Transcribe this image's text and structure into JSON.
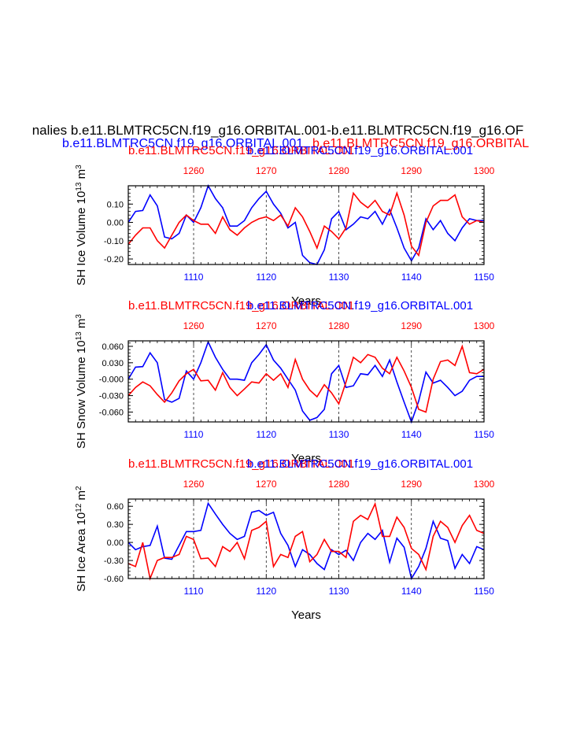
{
  "figure": {
    "title": "nalies b.e11.BLMTRC5CN.f19_g16.ORBITAL.001-b.e11.BLMTRC5CN.f19_g16.OF",
    "legend_blue": "b.e11.BLMTRC5CN.f19_g16.ORBITAL.001",
    "legend_red": "b.e11.BLMTRC5CN.f19_g16.ORBITAL",
    "blue_color": "#0000ff",
    "red_color": "#ff0000"
  },
  "chart_data": [
    {
      "type": "line",
      "top_title_red": "b.e11.BLMTRC5CN.f19_g16.ORBITAL.001",
      "top_title_blue": "b.e11.BLMTRC5CN.f19_g16.ORBITAL.001",
      "ylabel": "SH Ice Volume 10",
      "ylabel_exp": "13",
      "ylabel_unit": " m",
      "ylabel_unit_exp": "3",
      "xlabel": "Years",
      "ylim": [
        -0.23,
        0.2
      ],
      "yticks": [
        -0.2,
        -0.1,
        0.0,
        0.1
      ],
      "ytick_labels": [
        "-0.20",
        "-0.10",
        "0.00",
        "0.10"
      ],
      "xlim_bottom": [
        1101,
        1150
      ],
      "xticks_bottom": [
        1110,
        1120,
        1130,
        1140,
        1150
      ],
      "xlim_top": [
        1251,
        1300
      ],
      "xticks_top": [
        1260,
        1270,
        1280,
        1290,
        1300
      ],
      "series": [
        {
          "axis": "bottom",
          "color": "#0000ff",
          "x": [
            1101,
            1102,
            1103,
            1104,
            1105,
            1106,
            1107,
            1108,
            1109,
            1110,
            1111,
            1112,
            1113,
            1114,
            1115,
            1116,
            1117,
            1118,
            1119,
            1120,
            1121,
            1122,
            1123,
            1124,
            1125,
            1126,
            1127,
            1128,
            1129,
            1130,
            1131,
            1132,
            1133,
            1134,
            1135,
            1136,
            1137,
            1138,
            1139,
            1140,
            1141,
            1142,
            1143,
            1144,
            1145,
            1146,
            1147,
            1148,
            1149,
            1150
          ],
          "values": [
            0.0,
            0.06,
            0.065,
            0.15,
            0.09,
            -0.08,
            -0.09,
            -0.06,
            0.04,
            0.0,
            0.08,
            0.2,
            0.13,
            0.08,
            -0.02,
            -0.02,
            0.01,
            0.08,
            0.13,
            0.17,
            0.1,
            0.05,
            -0.03,
            0.0,
            -0.18,
            -0.22,
            -0.23,
            -0.15,
            0.02,
            0.06,
            -0.04,
            -0.01,
            0.03,
            0.02,
            0.06,
            -0.01,
            0.07,
            -0.03,
            -0.14,
            -0.21,
            -0.14,
            0.02,
            -0.04,
            0.01,
            -0.06,
            -0.1,
            -0.03,
            0.02,
            0.01,
            0.01
          ]
        },
        {
          "axis": "top",
          "color": "#ff0000",
          "x": [
            1251,
            1252,
            1253,
            1254,
            1255,
            1256,
            1257,
            1258,
            1259,
            1260,
            1261,
            1262,
            1263,
            1264,
            1265,
            1266,
            1267,
            1268,
            1269,
            1270,
            1271,
            1272,
            1273,
            1274,
            1275,
            1276,
            1277,
            1278,
            1279,
            1280,
            1281,
            1282,
            1283,
            1284,
            1285,
            1286,
            1287,
            1288,
            1289,
            1290,
            1291,
            1292,
            1293,
            1294,
            1295,
            1296,
            1297,
            1298,
            1299,
            1300
          ],
          "values": [
            -0.12,
            -0.07,
            -0.03,
            -0.03,
            -0.1,
            -0.14,
            -0.07,
            0.0,
            0.04,
            0.01,
            -0.01,
            -0.01,
            -0.06,
            0.03,
            -0.04,
            -0.07,
            -0.03,
            0.0,
            0.02,
            0.03,
            0.01,
            0.04,
            -0.02,
            0.08,
            0.03,
            -0.05,
            -0.14,
            -0.02,
            -0.05,
            -0.09,
            -0.03,
            0.16,
            0.11,
            0.08,
            0.12,
            0.06,
            0.04,
            0.16,
            0.04,
            -0.13,
            -0.18,
            0.0,
            0.09,
            0.12,
            0.12,
            0.15,
            0.03,
            -0.01,
            0.01,
            0.0
          ]
        }
      ]
    },
    {
      "type": "line",
      "top_title_red": "b.e11.BLMTRC5CN.f19_g16.ORBITAL.001",
      "top_title_blue": "b.e11.BLMTRC5CN.f19_g16.ORBITAL.001",
      "ylabel": "SH Snow Volume 10",
      "ylabel_exp": "13",
      "ylabel_unit": " m",
      "ylabel_unit_exp": "3",
      "xlabel": "Years",
      "ylim": [
        -0.078,
        0.07
      ],
      "yticks": [
        -0.06,
        -0.03,
        0.0,
        0.03,
        0.06
      ],
      "ytick_labels": [
        "-0.060",
        "-0.030",
        "-0.000",
        "0.030",
        "0.060"
      ],
      "xlim_bottom": [
        1101,
        1150
      ],
      "xticks_bottom": [
        1110,
        1120,
        1130,
        1140,
        1150
      ],
      "xlim_top": [
        1251,
        1300
      ],
      "xticks_top": [
        1260,
        1270,
        1280,
        1290,
        1300
      ],
      "series": [
        {
          "axis": "bottom",
          "color": "#0000ff",
          "x": [
            1101,
            1102,
            1103,
            1104,
            1105,
            1106,
            1107,
            1108,
            1109,
            1110,
            1111,
            1112,
            1113,
            1114,
            1115,
            1116,
            1117,
            1118,
            1119,
            1120,
            1121,
            1122,
            1123,
            1124,
            1125,
            1126,
            1127,
            1128,
            1129,
            1130,
            1131,
            1132,
            1133,
            1134,
            1135,
            1136,
            1137,
            1138,
            1139,
            1140,
            1141,
            1142,
            1143,
            1144,
            1145,
            1146,
            1147,
            1148,
            1149,
            1150
          ],
          "values": [
            0.0,
            0.022,
            0.023,
            0.048,
            0.03,
            -0.037,
            -0.042,
            -0.035,
            0.015,
            0.0,
            0.03,
            0.068,
            0.04,
            0.018,
            0.0,
            0.0,
            -0.002,
            0.03,
            0.045,
            0.063,
            0.035,
            0.02,
            0.0,
            -0.02,
            -0.058,
            -0.075,
            -0.07,
            -0.055,
            0.01,
            0.025,
            -0.015,
            -0.012,
            0.01,
            0.008,
            0.025,
            0.005,
            0.035,
            -0.005,
            -0.042,
            -0.078,
            -0.04,
            0.013,
            -0.007,
            -0.002,
            -0.015,
            -0.03,
            -0.022,
            -0.002,
            0.005,
            0.005
          ]
        },
        {
          "axis": "top",
          "color": "#ff0000",
          "x": [
            1251,
            1252,
            1253,
            1254,
            1255,
            1256,
            1257,
            1258,
            1259,
            1260,
            1261,
            1262,
            1263,
            1264,
            1265,
            1266,
            1267,
            1268,
            1269,
            1270,
            1271,
            1272,
            1273,
            1274,
            1275,
            1276,
            1277,
            1278,
            1279,
            1280,
            1281,
            1282,
            1283,
            1284,
            1285,
            1286,
            1287,
            1288,
            1289,
            1290,
            1291,
            1292,
            1293,
            1294,
            1295,
            1296,
            1297,
            1298,
            1299,
            1300
          ],
          "values": [
            -0.03,
            -0.015,
            -0.005,
            -0.012,
            -0.028,
            -0.042,
            -0.025,
            -0.003,
            0.01,
            0.018,
            -0.003,
            -0.002,
            -0.02,
            0.012,
            -0.015,
            -0.03,
            -0.018,
            -0.005,
            -0.007,
            0.01,
            -0.002,
            0.01,
            -0.015,
            0.036,
            0.0,
            -0.02,
            -0.032,
            -0.01,
            -0.025,
            -0.045,
            -0.005,
            0.04,
            0.03,
            0.045,
            0.04,
            0.02,
            0.01,
            0.04,
            0.015,
            -0.015,
            -0.055,
            -0.06,
            0.0,
            0.032,
            0.035,
            0.025,
            0.06,
            0.012,
            0.01,
            0.018
          ]
        }
      ]
    },
    {
      "type": "line",
      "top_title_red": "b.e11.BLMTRC5CN.f19_g16.ORBITAL.001",
      "top_title_blue": "b.e11.BLMTRC5CN.f19_g16.ORBITAL.001",
      "ylabel": "SH Ice Area 10",
      "ylabel_exp": "12",
      "ylabel_unit": " m",
      "ylabel_unit_exp": "2",
      "xlabel": "Years",
      "ylim": [
        -0.6,
        0.72
      ],
      "yticks": [
        -0.6,
        -0.3,
        0.0,
        0.3,
        0.6
      ],
      "ytick_labels": [
        "-0.60",
        "-0.30",
        "0.00",
        "0.30",
        "0.60"
      ],
      "xlim_bottom": [
        1101,
        1150
      ],
      "xticks_bottom": [
        1110,
        1120,
        1130,
        1140,
        1150
      ],
      "xlim_top": [
        1251,
        1300
      ],
      "xticks_top": [
        1260,
        1270,
        1280,
        1290,
        1300
      ],
      "series": [
        {
          "axis": "bottom",
          "color": "#0000ff",
          "x": [
            1101,
            1102,
            1103,
            1104,
            1105,
            1106,
            1107,
            1108,
            1109,
            1110,
            1111,
            1112,
            1113,
            1114,
            1115,
            1116,
            1117,
            1118,
            1119,
            1120,
            1121,
            1122,
            1123,
            1124,
            1125,
            1126,
            1127,
            1128,
            1129,
            1130,
            1131,
            1132,
            1133,
            1134,
            1135,
            1136,
            1137,
            1138,
            1139,
            1140,
            1141,
            1142,
            1143,
            1144,
            1145,
            1146,
            1147,
            1148,
            1149,
            1150
          ],
          "values": [
            0.0,
            -0.12,
            -0.07,
            -0.05,
            0.27,
            -0.26,
            -0.28,
            -0.05,
            0.18,
            0.18,
            0.2,
            0.65,
            0.47,
            0.3,
            0.15,
            0.05,
            0.1,
            0.5,
            0.53,
            0.45,
            0.5,
            0.15,
            -0.05,
            -0.4,
            -0.12,
            -0.2,
            -0.35,
            -0.45,
            -0.12,
            -0.2,
            -0.13,
            -0.3,
            0.0,
            0.15,
            0.05,
            0.2,
            -0.33,
            0.07,
            -0.08,
            -0.6,
            -0.4,
            -0.1,
            0.35,
            0.07,
            0.03,
            -0.43,
            -0.2,
            -0.35,
            -0.07,
            -0.12
          ]
        },
        {
          "axis": "top",
          "color": "#ff0000",
          "x": [
            1251,
            1252,
            1253,
            1254,
            1255,
            1256,
            1257,
            1258,
            1259,
            1260,
            1261,
            1262,
            1263,
            1264,
            1265,
            1266,
            1267,
            1268,
            1269,
            1270,
            1271,
            1272,
            1273,
            1274,
            1275,
            1276,
            1277,
            1278,
            1279,
            1280,
            1281,
            1282,
            1283,
            1284,
            1285,
            1286,
            1287,
            1288,
            1289,
            1290,
            1291,
            1292,
            1293,
            1294,
            1295,
            1296,
            1297,
            1298,
            1299,
            1300
          ],
          "values": [
            -0.35,
            -0.4,
            0.0,
            -0.6,
            -0.3,
            -0.25,
            -0.25,
            -0.2,
            0.1,
            0.05,
            -0.27,
            -0.26,
            -0.4,
            -0.07,
            -0.15,
            0.0,
            -0.27,
            0.2,
            0.25,
            0.35,
            -0.4,
            -0.2,
            -0.25,
            0.1,
            0.18,
            -0.32,
            -0.2,
            0.05,
            -0.15,
            -0.15,
            -0.25,
            0.35,
            0.45,
            0.38,
            0.64,
            0.1,
            0.1,
            0.42,
            0.25,
            -0.1,
            -0.2,
            -0.45,
            0.1,
            0.35,
            0.25,
            0.0,
            0.28,
            0.45,
            0.2,
            0.15
          ]
        }
      ]
    }
  ]
}
